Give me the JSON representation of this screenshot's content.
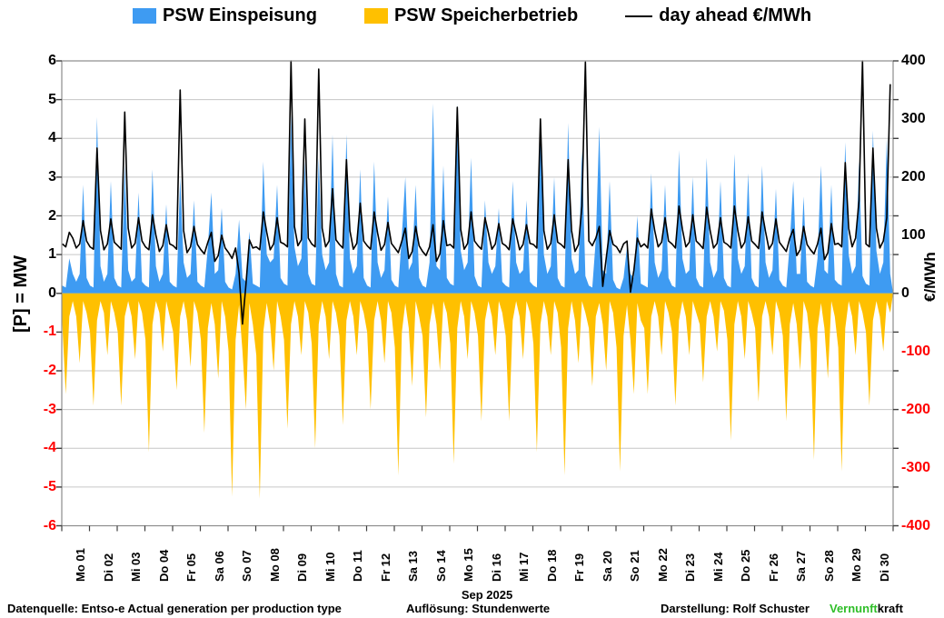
{
  "legend": {
    "items": [
      {
        "label": "PSW Einspeisung",
        "color": "#3E9BF2",
        "marker": "area"
      },
      {
        "label": "PSW Speicherbetrieb",
        "color": "#FFC000",
        "marker": "area"
      },
      {
        "label": "day ahead €/MWh",
        "color": "#000000",
        "marker": "line"
      }
    ]
  },
  "left_axis": {
    "title": "[P] = MW",
    "ticks": [
      6,
      5,
      4,
      3,
      2,
      1,
      0,
      -1,
      -2,
      -3,
      -4,
      -5,
      -6
    ],
    "positive_color": "#000000",
    "negative_color": "#FF0000"
  },
  "right_axis": {
    "title": "€/MWh",
    "ticks": [
      400,
      300,
      200,
      100,
      0,
      -100,
      -200,
      -300,
      -400
    ],
    "positive_color": "#000000",
    "negative_color": "#FF0000"
  },
  "x_axis": {
    "month_label": "Sep 2025"
  },
  "footer": {
    "source": "Datenquelle: Entso-e  Actual generation per production type",
    "resolution": "Auflösung:  Stundenwerte",
    "credit": "Darstellung:  Rolf Schuster",
    "brand_green": "Vernunft",
    "brand_rest": "kraft",
    "brand_green_color": "#2FBE28"
  },
  "chart_data": {
    "type": "area",
    "title": "",
    "ylabel": "[P] = MW",
    "y2label": "€/MWh",
    "xlabel": "Sep 2025",
    "grid": "horizontal",
    "legend_position": "top",
    "left_ylim": [
      -6,
      6
    ],
    "right_ylim": [
      -400,
      400
    ],
    "x_labels": [
      "Mo 01",
      "Di 02",
      "Mi 03",
      "Do 04",
      "Fr 05",
      "Sa 06",
      "So 07",
      "Mo 08",
      "Di 09",
      "Mi 10",
      "Do 11",
      "Fr 12",
      "Sa 13",
      "So 14",
      "Mo 15",
      "Di 16",
      "Mi 17",
      "Do 18",
      "Fr 19",
      "Sa 20",
      "So 21",
      "Mo 22",
      "Di 23",
      "Mi 24",
      "Do 25",
      "Fr 26",
      "Sa 27",
      "So 28",
      "Mo 29",
      "Di 30"
    ],
    "sample_hours": [
      0,
      3,
      6,
      9,
      12,
      15,
      18,
      21
    ],
    "series": [
      {
        "name": "PSW Einspeisung",
        "type": "area",
        "axis": "left",
        "unit": "MW",
        "color": "#3E9BF2",
        "values_by_day": [
          [
            0.2,
            0.15,
            0.9,
            0.5,
            0.3,
            0.5,
            2.8,
            0.4
          ],
          [
            0.2,
            0.15,
            4.55,
            0.7,
            0.3,
            0.5,
            2.9,
            0.4
          ],
          [
            0.2,
            0.15,
            3.3,
            0.6,
            0.3,
            0.4,
            2.6,
            0.3
          ],
          [
            0.2,
            0.15,
            3.2,
            0.7,
            0.3,
            0.5,
            2.3,
            0.3
          ],
          [
            0.2,
            0.15,
            3.0,
            0.8,
            0.4,
            0.5,
            2.4,
            0.3
          ],
          [
            0.2,
            0.15,
            1.2,
            2.6,
            0.5,
            0.6,
            2.2,
            0.3
          ],
          [
            0.15,
            0.1,
            0.5,
            1.9,
            0.4,
            0.3,
            1.6,
            0.25
          ],
          [
            0.2,
            0.15,
            3.4,
            1.0,
            0.8,
            0.9,
            2.8,
            0.4
          ],
          [
            0.25,
            0.2,
            4.6,
            1.2,
            0.7,
            0.9,
            3.4,
            0.5
          ],
          [
            0.25,
            0.2,
            3.5,
            1.0,
            0.6,
            0.8,
            4.1,
            0.5
          ],
          [
            0.2,
            0.15,
            4.1,
            0.9,
            0.5,
            0.7,
            3.2,
            0.4
          ],
          [
            0.2,
            0.15,
            3.4,
            0.8,
            0.4,
            0.6,
            2.5,
            0.35
          ],
          [
            0.2,
            0.15,
            1.5,
            3.0,
            0.6,
            0.8,
            2.8,
            0.4
          ],
          [
            0.2,
            0.15,
            0.8,
            4.9,
            0.7,
            0.6,
            3.3,
            0.4
          ],
          [
            0.25,
            0.2,
            4.9,
            1.1,
            0.6,
            0.8,
            3.5,
            0.45
          ],
          [
            0.2,
            0.15,
            2.4,
            0.8,
            0.5,
            0.7,
            2.2,
            0.3
          ],
          [
            0.2,
            0.15,
            2.9,
            0.8,
            0.5,
            0.6,
            2.4,
            0.3
          ],
          [
            0.2,
            0.15,
            4.5,
            1.0,
            0.5,
            0.7,
            3.0,
            0.4
          ],
          [
            0.2,
            0.15,
            4.4,
            0.9,
            0.5,
            0.6,
            3.7,
            0.45
          ],
          [
            0.2,
            0.15,
            1.4,
            4.3,
            0.6,
            0.5,
            2.9,
            0.35
          ],
          [
            0.15,
            0.1,
            0.4,
            1.2,
            0.5,
            0.4,
            2.0,
            0.25
          ],
          [
            0.2,
            0.15,
            3.1,
            0.8,
            0.4,
            0.6,
            2.8,
            0.4
          ],
          [
            0.2,
            0.15,
            3.7,
            0.9,
            0.5,
            0.6,
            3.0,
            0.4
          ],
          [
            0.2,
            0.15,
            3.5,
            0.8,
            0.4,
            0.6,
            2.9,
            0.4
          ],
          [
            0.2,
            0.15,
            3.6,
            0.9,
            0.5,
            0.7,
            3.1,
            0.4
          ],
          [
            0.2,
            0.15,
            3.3,
            0.8,
            0.4,
            0.6,
            2.7,
            0.35
          ],
          [
            0.2,
            0.15,
            1.3,
            2.9,
            0.5,
            0.5,
            2.5,
            0.3
          ],
          [
            0.2,
            0.15,
            0.9,
            3.3,
            0.6,
            0.5,
            2.8,
            0.35
          ],
          [
            0.25,
            0.2,
            3.9,
            1.0,
            0.5,
            0.7,
            3.4,
            0.45
          ],
          [
            0.25,
            0.2,
            4.2,
            1.1,
            0.5,
            0.8,
            4.0,
            0.5
          ]
        ]
      },
      {
        "name": "PSW Speicherbetrieb",
        "type": "area",
        "axis": "left",
        "unit": "MW",
        "color": "#FFC000",
        "values_by_day": [
          [
            -0.8,
            -2.6,
            -0.6,
            -0.2,
            -0.6,
            -1.8,
            -0.2,
            -0.5
          ],
          [
            -1.0,
            -2.9,
            -0.7,
            -0.2,
            -0.5,
            -1.6,
            -0.2,
            -0.5
          ],
          [
            -1.0,
            -2.9,
            -0.6,
            -0.2,
            -0.6,
            -1.7,
            -0.2,
            -0.5
          ],
          [
            -1.2,
            -4.1,
            -0.8,
            -0.2,
            -0.5,
            -1.5,
            -0.2,
            -0.6
          ],
          [
            -1.0,
            -2.5,
            -0.6,
            -0.2,
            -0.7,
            -1.9,
            -0.2,
            -0.5
          ],
          [
            -1.2,
            -3.6,
            -0.9,
            -0.25,
            -0.8,
            -2.2,
            -0.2,
            -0.6
          ],
          [
            -1.5,
            -5.25,
            -1.2,
            -0.3,
            -1.5,
            -3.0,
            -0.25,
            -0.8
          ],
          [
            -1.6,
            -5.3,
            -1.0,
            -0.25,
            -0.8,
            -2.0,
            -0.2,
            -0.6
          ],
          [
            -1.2,
            -3.5,
            -0.8,
            -0.2,
            -0.6,
            -1.6,
            -0.2,
            -0.5
          ],
          [
            -1.3,
            -4.0,
            -0.8,
            -0.2,
            -0.6,
            -1.7,
            -0.2,
            -0.5
          ],
          [
            -1.1,
            -3.4,
            -0.7,
            -0.2,
            -0.6,
            -1.6,
            -0.2,
            -0.5
          ],
          [
            -1.0,
            -3.0,
            -0.7,
            -0.2,
            -0.7,
            -1.8,
            -0.2,
            -0.5
          ],
          [
            -1.4,
            -4.7,
            -1.0,
            -0.25,
            -0.9,
            -2.4,
            -0.2,
            -0.6
          ],
          [
            -1.1,
            -3.2,
            -0.8,
            -0.25,
            -0.8,
            -2.0,
            -0.2,
            -0.5
          ],
          [
            -1.3,
            -4.4,
            -0.9,
            -0.2,
            -0.6,
            -1.7,
            -0.2,
            -0.5
          ],
          [
            -1.1,
            -3.3,
            -0.7,
            -0.2,
            -0.6,
            -1.6,
            -0.2,
            -0.5
          ],
          [
            -1.1,
            -3.3,
            -0.7,
            -0.2,
            -0.6,
            -1.7,
            -0.2,
            -0.5
          ],
          [
            -1.3,
            -4.1,
            -0.8,
            -0.2,
            -0.6,
            -1.6,
            -0.2,
            -0.5
          ],
          [
            -1.4,
            -4.7,
            -0.9,
            -0.2,
            -0.7,
            -1.8,
            -0.2,
            -0.5
          ],
          [
            -0.9,
            -2.4,
            -0.6,
            -0.25,
            -0.8,
            -2.0,
            -0.2,
            -0.5
          ],
          [
            -1.4,
            -4.6,
            -1.1,
            -0.3,
            -1.2,
            -2.6,
            -0.25,
            -0.7
          ],
          [
            -0.9,
            -2.6,
            -0.6,
            -0.2,
            -0.6,
            -1.6,
            -0.2,
            -0.5
          ],
          [
            -1.0,
            -2.9,
            -0.7,
            -0.2,
            -0.6,
            -1.6,
            -0.2,
            -0.5
          ],
          [
            -0.8,
            -2.3,
            -0.6,
            -0.2,
            -0.6,
            -1.5,
            -0.2,
            -0.45
          ],
          [
            -1.2,
            -3.8,
            -0.8,
            -0.2,
            -0.6,
            -1.7,
            -0.2,
            -0.5
          ],
          [
            -0.9,
            -2.8,
            -0.6,
            -0.2,
            -0.6,
            -1.6,
            -0.2,
            -0.5
          ],
          [
            -1.1,
            -3.3,
            -0.8,
            -0.25,
            -0.8,
            -2.0,
            -0.2,
            -0.5
          ],
          [
            -1.3,
            -4.3,
            -0.9,
            -0.25,
            -0.9,
            -2.2,
            -0.2,
            -0.6
          ],
          [
            -1.4,
            -4.6,
            -0.9,
            -0.2,
            -0.6,
            -1.6,
            -0.2,
            -0.5
          ],
          [
            -1.0,
            -2.9,
            -0.7,
            -0.2,
            -0.6,
            -1.5,
            -0.2,
            -0.5
          ]
        ]
      },
      {
        "name": "day ahead €/MWh",
        "type": "line",
        "axis": "right",
        "unit": "€/MWh",
        "color": "#000000",
        "values_by_day": [
          [
            85,
            80,
            105,
            95,
            78,
            85,
            125,
            90
          ],
          [
            80,
            76,
            250,
            108,
            75,
            85,
            128,
            88
          ],
          [
            82,
            76,
            312,
            112,
            78,
            86,
            130,
            90
          ],
          [
            80,
            75,
            135,
            100,
            72,
            82,
            118,
            85
          ],
          [
            82,
            76,
            350,
            108,
            70,
            80,
            115,
            84
          ],
          [
            75,
            68,
            88,
            105,
            55,
            65,
            100,
            78
          ],
          [
            70,
            60,
            78,
            35,
            -53,
            15,
            92,
            78
          ],
          [
            80,
            75,
            140,
            105,
            75,
            85,
            130,
            88
          ],
          [
            85,
            80,
            400,
            115,
            82,
            92,
            300,
            95
          ],
          [
            85,
            80,
            386,
            112,
            80,
            90,
            180,
            92
          ],
          [
            84,
            78,
            230,
            108,
            76,
            86,
            155,
            90
          ],
          [
            82,
            76,
            140,
            104,
            74,
            84,
            122,
            86
          ],
          [
            78,
            70,
            90,
            112,
            60,
            72,
            115,
            82
          ],
          [
            72,
            65,
            80,
            118,
            55,
            68,
            125,
            82
          ],
          [
            84,
            78,
            320,
            110,
            76,
            86,
            140,
            90
          ],
          [
            82,
            76,
            130,
            104,
            76,
            85,
            120,
            86
          ],
          [
            82,
            75,
            128,
            102,
            75,
            84,
            118,
            86
          ],
          [
            84,
            78,
            300,
            108,
            76,
            86,
            135,
            88
          ],
          [
            84,
            78,
            230,
            108,
            72,
            84,
            150,
            398
          ],
          [
            90,
            82,
            95,
            115,
            12,
            60,
            108,
            84
          ],
          [
            80,
            70,
            85,
            90,
            2,
            40,
            95,
            80
          ],
          [
            85,
            78,
            145,
            108,
            80,
            88,
            130,
            90
          ],
          [
            85,
            78,
            150,
            110,
            80,
            88,
            135,
            90
          ],
          [
            84,
            77,
            148,
            108,
            78,
            86,
            130,
            88
          ],
          [
            84,
            78,
            150,
            108,
            78,
            88,
            132,
            90
          ],
          [
            84,
            77,
            140,
            106,
            76,
            86,
            128,
            88
          ],
          [
            80,
            72,
            95,
            110,
            65,
            75,
            115,
            84
          ],
          [
            75,
            68,
            85,
            112,
            58,
            70,
            120,
            84
          ],
          [
            86,
            80,
            225,
            112,
            80,
            95,
            160,
            400
          ],
          [
            85,
            80,
            250,
            112,
            78,
            90,
            130,
            360
          ]
        ]
      }
    ]
  }
}
